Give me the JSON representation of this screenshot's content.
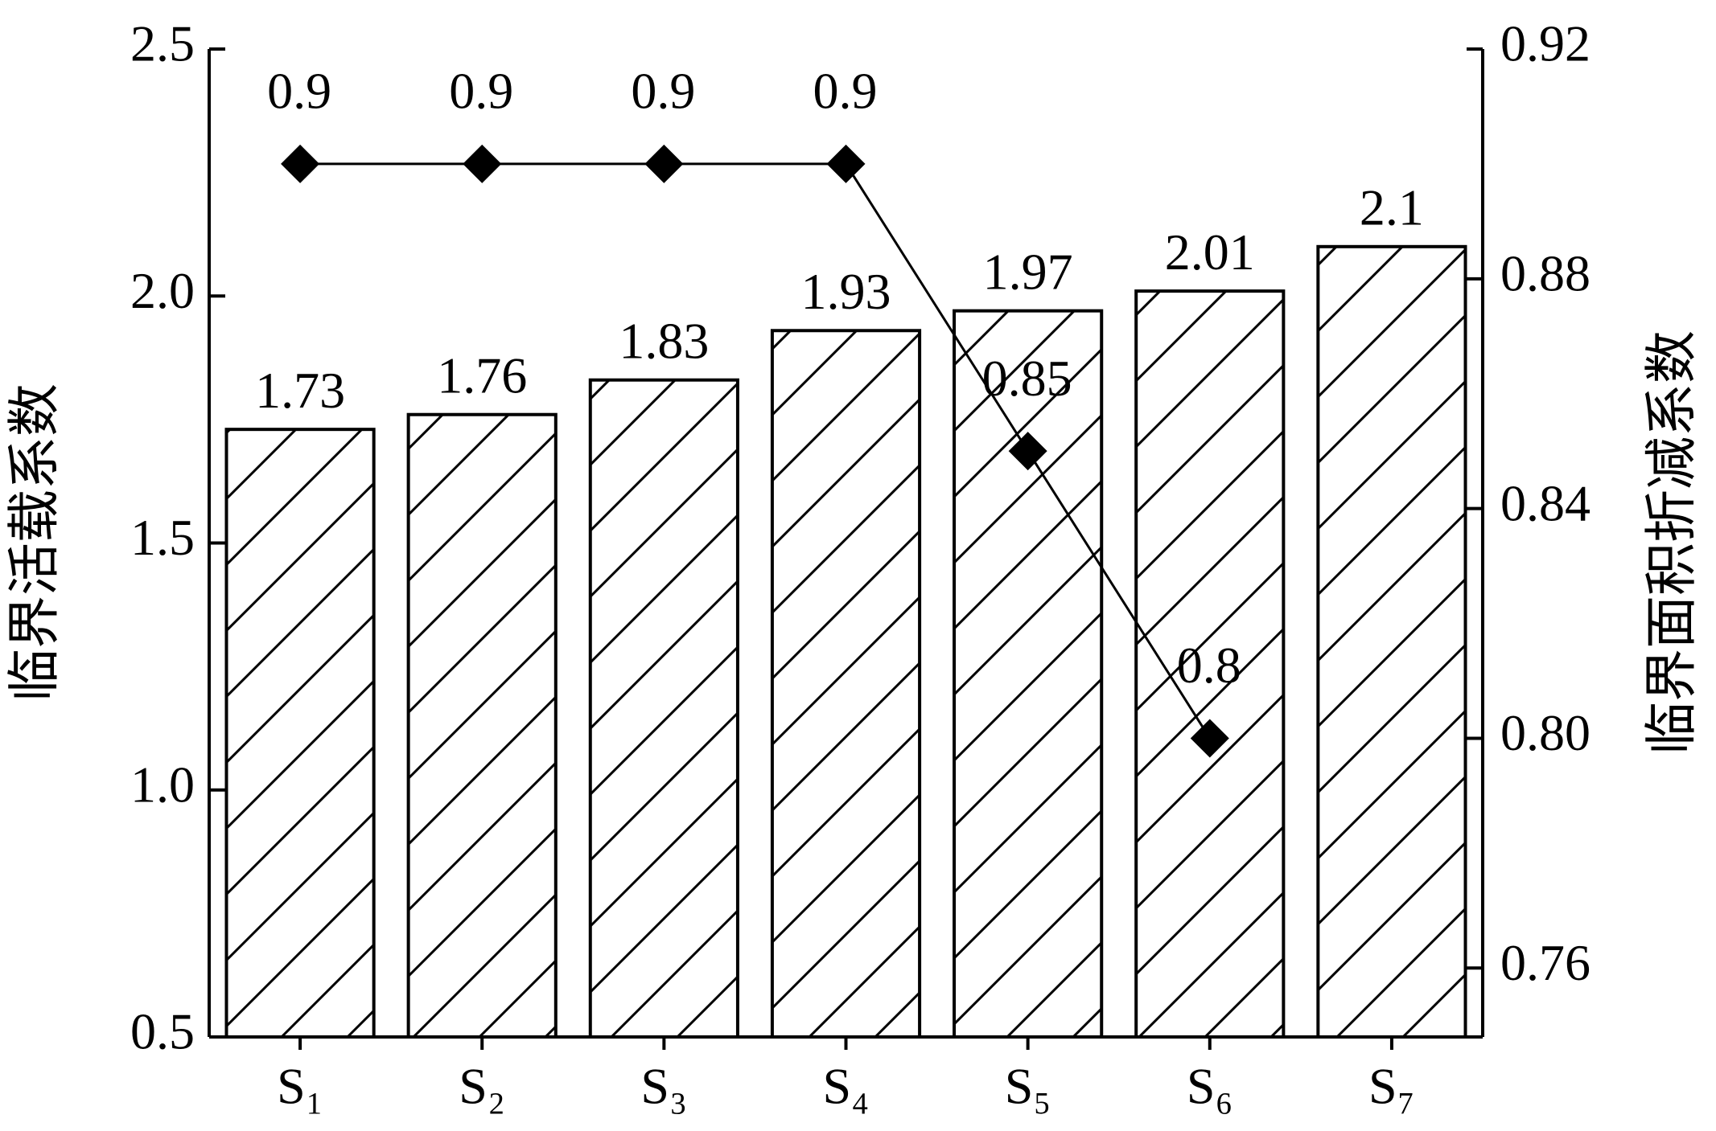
{
  "chart_data": {
    "type": "bar-line",
    "categories": [
      "S₁",
      "S₂",
      "S₃",
      "S₄",
      "S₅",
      "S₆",
      "S₇"
    ],
    "ylabel": "临界活载系数",
    "y2label": "临界面积折减系数",
    "ylim": [
      0.5,
      2.5
    ],
    "yticks": [
      0.5,
      {
        "value": 1.0,
        "label": "1.0"
      },
      1.5,
      {
        "value": 2.0,
        "label": "2.0"
      },
      2.5
    ],
    "y2lim": [
      0.748,
      0.92
    ],
    "y2ticks": [
      0.76,
      {
        "value": 0.8,
        "label": "0.80"
      },
      0.84,
      0.88,
      0.92
    ],
    "series": [
      {
        "type": "bar",
        "color": "#000000",
        "values": [
          1.73,
          1.76,
          1.83,
          1.93,
          1.97,
          2.01,
          2.1
        ]
      },
      {
        "type": "line",
        "axis": "y2",
        "color": "#000000",
        "values": [
          0.9,
          0.9,
          0.9,
          0.9,
          0.85,
          0.8,
          null
        ]
      }
    ]
  }
}
